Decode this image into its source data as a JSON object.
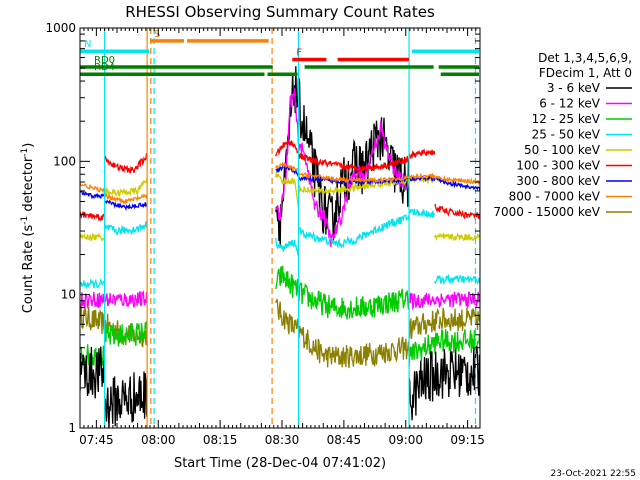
{
  "chart_data": {
    "type": "line",
    "title": "RHESSI Observing Summary Count Rates",
    "xlabel": "Start Time (28-Dec-04 07:41:02)",
    "ylabel_parts": {
      "pre": "Count Rate (s",
      "sup": "-1",
      "post": " detector",
      "sup2": "-1",
      "end": ")"
    },
    "x_range_min": [
      41.03,
      138.0
    ],
    "y_range": [
      1,
      1000
    ],
    "y_scale": "log",
    "x_ticks": [
      {
        "m": 45,
        "label": "07:45"
      },
      {
        "m": 60,
        "label": "08:00"
      },
      {
        "m": 75,
        "label": "08:15"
      },
      {
        "m": 90,
        "label": "08:30"
      },
      {
        "m": 105,
        "label": "08:45"
      },
      {
        "m": 120,
        "label": "09:00"
      },
      {
        "m": 135,
        "label": "09:15"
      }
    ],
    "y_ticks": [
      {
        "v": 1,
        "label": "1"
      },
      {
        "v": 10,
        "label": "10"
      },
      {
        "v": 100,
        "label": "100"
      },
      {
        "v": 1000,
        "label": "1000"
      }
    ],
    "legend": {
      "position": "right",
      "header": [
        "Det 1,3,4,5,6,9,",
        "FDecim 1, Att 0"
      ],
      "entries": [
        {
          "label": "3 - 6 keV",
          "color": "#000000"
        },
        {
          "label": "6 - 12 keV",
          "color": "#ff00ff"
        },
        {
          "label": "12 - 25 keV",
          "color": "#00cc00"
        },
        {
          "label": "25 - 50 keV",
          "color": "#00e5ee"
        },
        {
          "label": "50 - 100 keV",
          "color": "#cccc00"
        },
        {
          "label": "100 - 300 keV",
          "color": "#ff0000"
        },
        {
          "label": "300 - 800 keV",
          "color": "#0000ff"
        },
        {
          "label": "800 - 7000 keV",
          "color": "#ff8000"
        },
        {
          "label": "7000 - 15000 keV",
          "color": "#8b8000"
        }
      ]
    },
    "flag_bars": [
      {
        "label": "S",
        "color": "#ff8000",
        "y": 800,
        "segments": [
          [
            58,
            66.5
          ],
          [
            66.5,
            87
          ]
        ]
      },
      {
        "label": "N",
        "color": "#00e5ee",
        "y": 670,
        "segments": [
          [
            41.03,
            58
          ],
          [
            121,
            138
          ]
        ]
      },
      {
        "label": "F",
        "color": "#ff0000",
        "y": 580,
        "segments": [
          [
            92.5,
            101
          ],
          [
            103,
            121
          ]
        ]
      },
      {
        "label": "RD0",
        "color": "#008000",
        "y": 510,
        "segments": [
          [
            41.03,
            88
          ],
          [
            95,
            127
          ],
          [
            127.5,
            138
          ]
        ]
      },
      {
        "label": "RD4",
        "color": "#008000",
        "y": 450,
        "segments": [
          [
            41.03,
            86
          ],
          [
            86,
            94
          ],
          [
            128,
            138
          ]
        ]
      }
    ],
    "vertical_markers": [
      {
        "m": 47.0,
        "color": "#00e5ee",
        "style": "solid"
      },
      {
        "m": 57.3,
        "color": "#ff8000",
        "style": "solid"
      },
      {
        "m": 58.2,
        "color": "#ff8000",
        "style": "dash"
      },
      {
        "m": 59.0,
        "color": "#00e5ee",
        "style": "dash"
      },
      {
        "m": 87.6,
        "color": "#ff8000",
        "style": "dash"
      },
      {
        "m": 94.0,
        "color": "#00e5ee",
        "style": "solid"
      },
      {
        "m": 120.8,
        "color": "#00e5ee",
        "style": "solid"
      },
      {
        "m": 136.9,
        "color": "#00e5ee",
        "style": "dash"
      }
    ],
    "series": [
      {
        "name": "3 - 6 keV",
        "color": "#000000",
        "noise": 0.4,
        "segments": [
          {
            "x": [
              41.03,
              47
            ],
            "y": [
              2.6,
              2.6
            ]
          },
          {
            "x": [
              47,
              50,
              54,
              57.3
            ],
            "y": [
              1.5,
              1.6,
              1.7,
              1.8
            ]
          },
          {
            "x": [
              88.5,
              89.5,
              91,
              92,
              93,
              95,
              97,
              99,
              100,
              102,
              104,
              106,
              108,
              110,
              112,
              114,
              116,
              118,
              119.5,
              120.8
            ],
            "y": [
              50,
              35,
              80,
              200,
              380,
              200,
              110,
              60,
              45,
              35,
              60,
              80,
              95,
              85,
              130,
              160,
              100,
              80,
              70,
              68
            ]
          },
          {
            "x": [
              120.8,
              124,
              128
            ],
            "y": [
              1.6,
              2.2,
              2.6
            ]
          },
          {
            "x": [
              128,
              138
            ],
            "y": [
              2.6,
              2.6
            ]
          }
        ]
      },
      {
        "name": "6 - 12 keV",
        "color": "#ff00ff",
        "noise": 0.12,
        "segments": [
          {
            "x": [
              41.03,
              57.3
            ],
            "y": [
              9.2,
              9.2
            ]
          },
          {
            "x": [
              88.5,
              89.5,
              91,
              92,
              93,
              94,
              96,
              98,
              100,
              102,
              104,
              106,
              108,
              110,
              112,
              114,
              115,
              116,
              118,
              120.8
            ],
            "y": [
              48,
              40,
              80,
              280,
              320,
              140,
              100,
              45,
              40,
              25,
              35,
              60,
              85,
              75,
              120,
              180,
              130,
              110,
              75,
              68
            ]
          },
          {
            "x": [
              120.8,
              128
            ],
            "y": [
              9.0,
              9.2
            ]
          },
          {
            "x": [
              128,
              138
            ],
            "y": [
              9.2,
              9.2
            ]
          }
        ]
      },
      {
        "name": "12 - 25 keV",
        "color": "#00cc00",
        "noise": 0.18,
        "segments": [
          {
            "x": [
              41.03,
              47
            ],
            "y": [
              3.5,
              3.5
            ]
          },
          {
            "x": [
              47,
              57.3
            ],
            "y": [
              4.8,
              5.2
            ]
          },
          {
            "x": [
              88.5,
              90,
              92,
              95,
              98,
              102,
              106,
              110,
              114,
              118,
              120.8
            ],
            "y": [
              12,
              14,
              12,
              10,
              9,
              8,
              8,
              8,
              8.5,
              9,
              9.5
            ]
          },
          {
            "x": [
              120.8,
              128
            ],
            "y": [
              3.5,
              4.5
            ]
          },
          {
            "x": [
              128,
              138
            ],
            "y": [
              4.5,
              4.5
            ]
          }
        ]
      },
      {
        "name": "25 - 50 keV",
        "color": "#00e5ee",
        "noise": 0.06,
        "segments": [
          {
            "x": [
              41.03,
              47
            ],
            "y": [
              12,
              12
            ]
          },
          {
            "x": [
              47,
              50,
              55,
              57.3
            ],
            "y": [
              32,
              30,
              31,
              34
            ]
          },
          {
            "x": [
              88.5,
              90,
              93,
              94
            ],
            "y": [
              25,
              22,
              25,
              20
            ]
          },
          {
            "x": [
              94,
              96,
              100,
              104,
              108,
              112,
              116,
              120.8
            ],
            "y": [
              30,
              28,
              26,
              24,
              26,
              30,
              34,
              38
            ]
          },
          {
            "x": [
              120.8,
              127
            ],
            "y": [
              42,
              40
            ]
          },
          {
            "x": [
              127,
              138
            ],
            "y": [
              13,
              13
            ]
          }
        ]
      },
      {
        "name": "50 - 100 keV",
        "color": "#cccc00",
        "noise": 0.05,
        "segments": [
          {
            "x": [
              41.03,
              47
            ],
            "y": [
              27,
              27
            ]
          },
          {
            "x": [
              47,
              50,
              55,
              57.3
            ],
            "y": [
              60,
              58,
              60,
              75
            ]
          },
          {
            "x": [
              88.5,
              90,
              93,
              94
            ],
            "y": [
              80,
              70,
              72,
              45
            ]
          },
          {
            "x": [
              94,
              98,
              102,
              106,
              110,
              114,
              118,
              120.8
            ],
            "y": [
              62,
              60,
              60,
              62,
              65,
              68,
              70,
              72
            ]
          },
          {
            "x": [
              120.8,
              127
            ],
            "y": [
              75,
              72
            ]
          },
          {
            "x": [
              127,
              138
            ],
            "y": [
              27,
              27
            ]
          }
        ]
      },
      {
        "name": "100 - 300 keV",
        "color": "#ff0000",
        "noise": 0.05,
        "segments": [
          {
            "x": [
              41.03,
              47
            ],
            "y": [
              40,
              38
            ]
          },
          {
            "x": [
              47,
              50,
              54,
              57.3
            ],
            "y": [
              105,
              90,
              85,
              110
            ]
          },
          {
            "x": [
              88.5,
              90,
              92,
              94
            ],
            "y": [
              110,
              130,
              140,
              120
            ]
          },
          {
            "x": [
              94,
              98,
              102,
              106,
              110,
              114,
              118,
              120.8
            ],
            "y": [
              110,
              100,
              95,
              90,
              88,
              92,
              98,
              105
            ]
          },
          {
            "x": [
              120.8,
              124,
              127
            ],
            "y": [
              110,
              115,
              118
            ]
          },
          {
            "x": [
              127,
              130,
              134,
              138
            ],
            "y": [
              45,
              42,
              40,
              39
            ]
          }
        ]
      },
      {
        "name": "300 - 800 keV",
        "color": "#0000ff",
        "noise": 0.03,
        "segments": [
          {
            "x": [
              41.03,
              44,
              47
            ],
            "y": [
              58,
              55,
              55
            ]
          },
          {
            "x": [
              47,
              52,
              57.3
            ],
            "y": [
              50,
              45,
              48
            ]
          },
          {
            "x": [
              88.5,
              90,
              92,
              94
            ],
            "y": [
              85,
              90,
              88,
              80
            ]
          },
          {
            "x": [
              94,
              100,
              106,
              112,
              118,
              120.8
            ],
            "y": [
              75,
              72,
              70,
              70,
              72,
              74
            ]
          },
          {
            "x": [
              120.8,
              126,
              128
            ],
            "y": [
              74,
              75,
              73
            ]
          },
          {
            "x": [
              128,
              133,
              138
            ],
            "y": [
              72,
              66,
              62
            ]
          }
        ]
      },
      {
        "name": "800 - 7000 keV",
        "color": "#ff8000",
        "noise": 0.03,
        "segments": [
          {
            "x": [
              41.03,
              44,
              47
            ],
            "y": [
              68,
              63,
              60
            ]
          },
          {
            "x": [
              47,
              52,
              57.3
            ],
            "y": [
              55,
              50,
              55
            ]
          },
          {
            "x": [
              88.5,
              90,
              92,
              94
            ],
            "y": [
              90,
              95,
              90,
              85
            ]
          },
          {
            "x": [
              94,
              100,
              106,
              112,
              118,
              120.8
            ],
            "y": [
              80,
              76,
              72,
              72,
              74,
              76
            ]
          },
          {
            "x": [
              120.8,
              126,
              128
            ],
            "y": [
              76,
              78,
              76
            ]
          },
          {
            "x": [
              128,
              133,
              138
            ],
            "y": [
              74,
              72,
              70
            ]
          }
        ]
      },
      {
        "name": "7000 - 15000 keV",
        "color": "#8b8000",
        "noise": 0.18,
        "segments": [
          {
            "x": [
              41.03,
              47,
              52,
              57.3
            ],
            "y": [
              7,
              6,
              5,
              5
            ]
          },
          {
            "x": [
              88.5,
              90,
              92,
              95,
              98,
              100,
              104,
              108,
              112,
              116,
              120.8
            ],
            "y": [
              8,
              7,
              6,
              5,
              4,
              3.5,
              3.4,
              3.5,
              3.6,
              3.8,
              4
            ]
          },
          {
            "x": [
              120.8,
              128
            ],
            "y": [
              5.5,
              6.5
            ]
          },
          {
            "x": [
              128,
              138
            ],
            "y": [
              6.5,
              6.5
            ]
          }
        ]
      }
    ],
    "grid": false
  },
  "footer": {
    "timestamp": "23-Oct-2021 22:55"
  }
}
